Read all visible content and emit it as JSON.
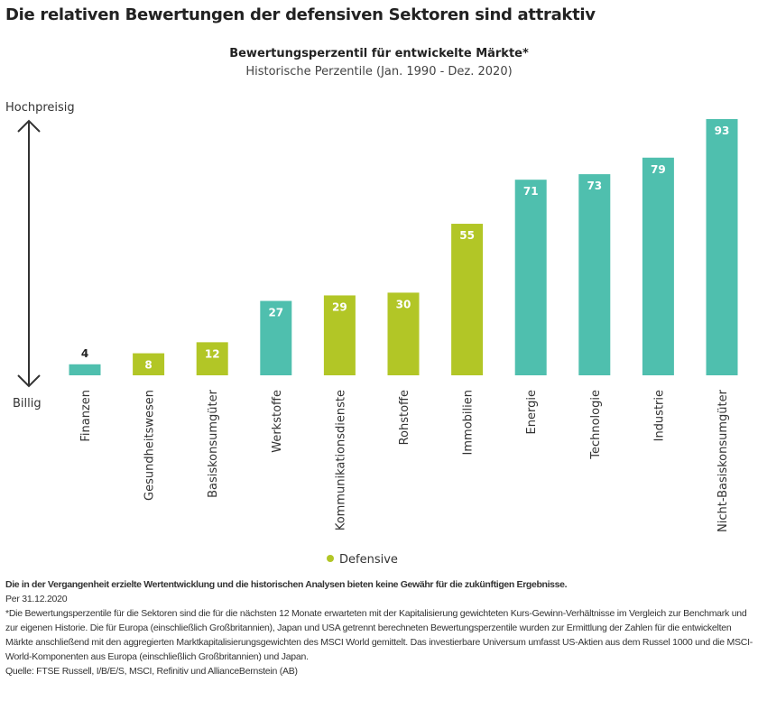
{
  "title": "Die relativen Bewertungen der defensiven Sektoren sind attraktiv",
  "chart_data": {
    "type": "bar",
    "title": "Bewertungsperzentil für entwickelte Märkte*",
    "subtitle": "Historische Perzentile (Jan. 1990 - Dez. 2020)",
    "ylabel_top": "Hochpreisig",
    "ylabel_bottom": "Billig",
    "ylim": [
      0,
      100
    ],
    "categories": [
      "Finanzen",
      "Gesundheitswesen",
      "Basiskonsumgüter",
      "Werkstoffe",
      "Kommunikationsdienste",
      "Rohstoffe",
      "Immobilien",
      "Energie",
      "Technologie",
      "Industrie",
      "Nicht-Basiskonsumgüter"
    ],
    "values": [
      4,
      8,
      12,
      27,
      29,
      30,
      55,
      71,
      73,
      79,
      93
    ],
    "defensive": [
      false,
      true,
      true,
      false,
      true,
      true,
      true,
      false,
      false,
      false,
      false
    ],
    "colors": {
      "defensive": "#b2c626",
      "other": "#4fbfae"
    },
    "legend": {
      "label": "Defensive",
      "position": "bottom-center"
    }
  },
  "footer": {
    "disclaimer": "Die in der Vergangenheit erzielte Wertentwicklung und die historischen Analysen bieten keine Gewähr für die zukünftigen Ergebnisse.",
    "date": "Per 31.12.2020",
    "note": "*Die Bewertungsperzentile für die Sektoren sind die für die nächsten 12 Monate erwarteten mit der Kapitalisierung gewichteten Kurs-Gewinn-Verhältnisse im Vergleich zur Benchmark und zur eigenen Historie. Die für Europa (einschließlich Großbritannien), Japan und USA getrennt berechneten Bewertungsperzentile wurden zur Ermittlung der Zahlen für die entwickelten Märkte anschließend mit den aggregierten Marktkapitalisierungsgewichten des MSCI World gemittelt.  Das investierbare Universum umfasst US-Aktien aus dem Russel 1000 und die MSCI-World-Komponenten aus Europa (einschließlich Großbritannien) und Japan.",
    "source": "Quelle: FTSE Russell, I/B/E/S, MSCI, Refinitiv und AllianceBernstein (AB)"
  }
}
